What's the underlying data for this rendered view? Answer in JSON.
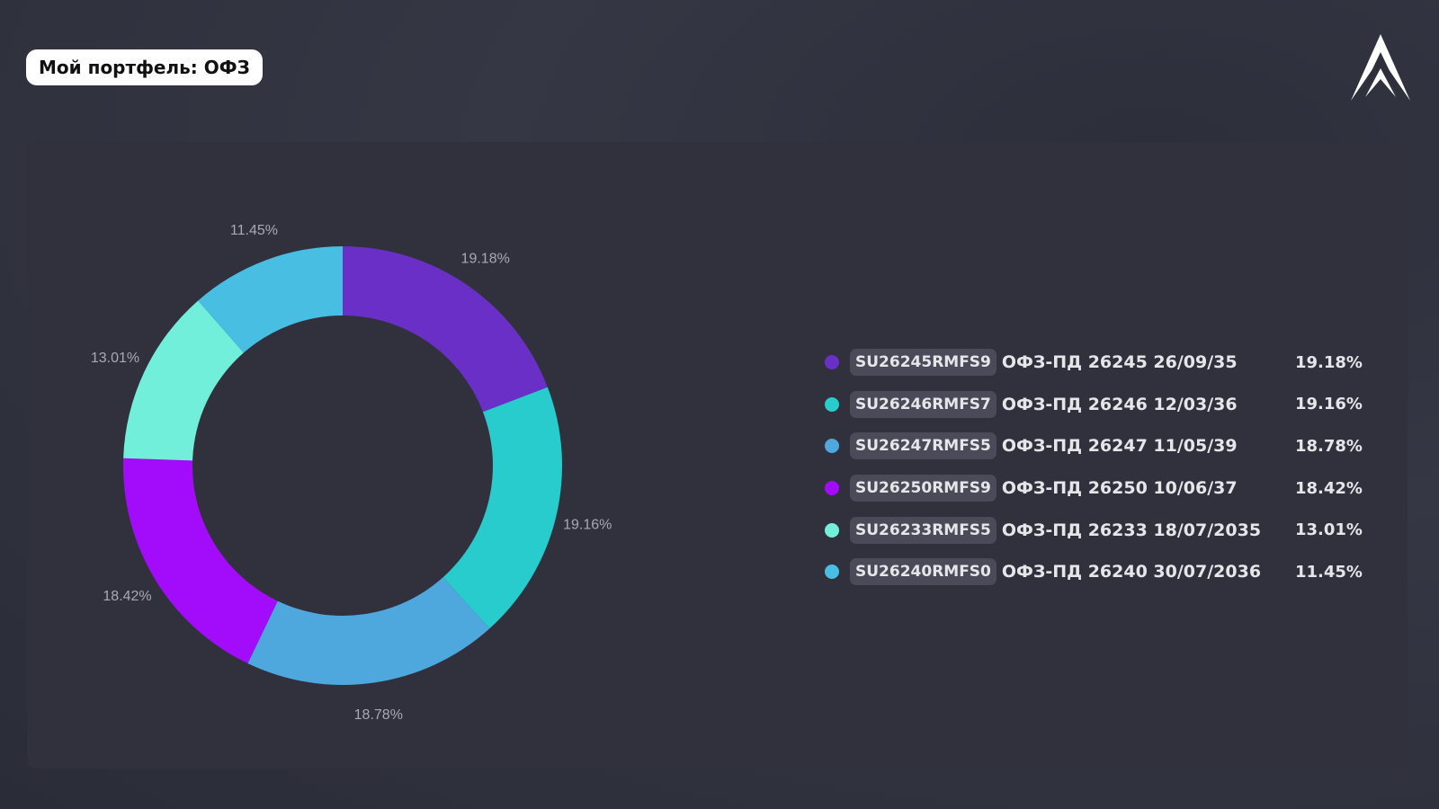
{
  "header": {
    "title": "Мой портфель: ОФЗ",
    "logo": "chevron-logo"
  },
  "chart_data": {
    "type": "pie",
    "donut": true,
    "categories": [
      "SU26245RMFS9",
      "SU26246RMFS7",
      "SU26247RMFS5",
      "SU26250RMFS9",
      "SU26233RMFS5",
      "SU26240RMFS0"
    ],
    "values": [
      19.18,
      19.16,
      18.78,
      18.42,
      13.01,
      11.45
    ],
    "data_labels": [
      "19.18%",
      "19.16%",
      "18.78%",
      "18.42%",
      "13.01%",
      "11.45%"
    ],
    "colors": [
      "#6a2fc6",
      "#29cccc",
      "#4ea8de",
      "#a20cfb",
      "#72efdb",
      "#48bee2"
    ],
    "legend_placement": "right"
  },
  "legend": [
    {
      "code": "SU26245RMFS9",
      "name": "ОФЗ-ПД 26245 26/09/35",
      "pct": "19.18%"
    },
    {
      "code": "SU26246RMFS7",
      "name": "ОФЗ-ПД 26246 12/03/36",
      "pct": "19.16%"
    },
    {
      "code": "SU26247RMFS5",
      "name": "ОФЗ-ПД 26247 11/05/39",
      "pct": "18.78%"
    },
    {
      "code": "SU26250RMFS9",
      "name": "ОФЗ-ПД 26250 10/06/37",
      "pct": "18.42%"
    },
    {
      "code": "SU26233RMFS5",
      "name": "ОФЗ-ПД 26233 18/07/2035",
      "pct": "13.01%"
    },
    {
      "code": "SU26240RMFS0",
      "name": "ОФЗ-ПД 26240 30/07/2036",
      "pct": "11.45%"
    }
  ]
}
